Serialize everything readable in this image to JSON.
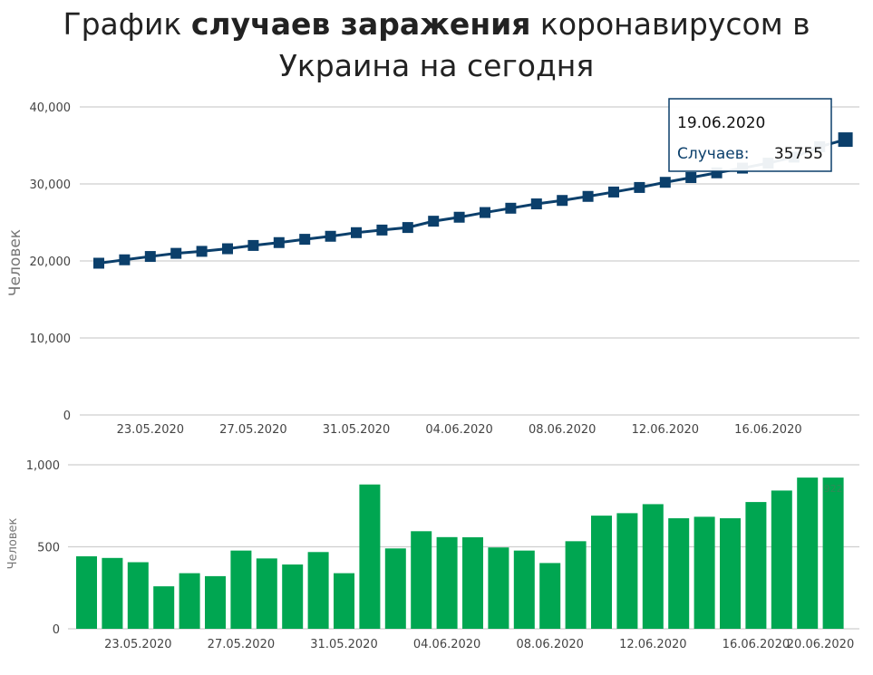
{
  "title": {
    "prefix": "График ",
    "bold": "случаев заражения",
    "suffix": " коронавирусом в Украина на сегодня"
  },
  "tooltip": {
    "date": "19.06.2020",
    "label": "Случаев:",
    "value": "35755"
  },
  "colors": {
    "line": "#0b3f6b",
    "bar": "#00a651",
    "grid": "#cfcfcf",
    "axis_text": "#444444"
  },
  "chart_data": [
    {
      "type": "line",
      "ylabel": "Человек",
      "ylim": [
        0,
        40000
      ],
      "yticks": [
        "0",
        "10,000",
        "20,000",
        "30,000",
        "40,000"
      ],
      "xticks": [
        "23.05.2020",
        "27.05.2020",
        "31.05.2020",
        "04.06.2020",
        "08.06.2020",
        "12.06.2020",
        "16.06.2020"
      ],
      "x": [
        "21.05.2020",
        "22.05.2020",
        "23.05.2020",
        "24.05.2020",
        "25.05.2020",
        "26.05.2020",
        "27.05.2020",
        "28.05.2020",
        "29.05.2020",
        "30.05.2020",
        "31.05.2020",
        "01.06.2020",
        "02.06.2020",
        "03.06.2020",
        "04.06.2020",
        "05.06.2020",
        "06.06.2020",
        "07.06.2020",
        "08.06.2020",
        "09.06.2020",
        "10.06.2020",
        "11.06.2020",
        "12.06.2020",
        "13.06.2020",
        "14.06.2020",
        "15.06.2020",
        "16.06.2020",
        "17.06.2020",
        "18.06.2020",
        "19.06.2020"
      ],
      "series": [
        {
          "values": [
            19706,
            20148,
            20580,
            20986,
            21245,
            21584,
            22011,
            22382,
            22811,
            23204,
            23672,
            24012,
            24340,
            25159,
            25677,
            26287,
            26846,
            27407,
            27856,
            28381,
            28950,
            29539,
            30209,
            30825,
            31441,
            32053,
            32703,
            33479,
            34829,
            35755
          ]
        }
      ],
      "grid": true
    },
    {
      "type": "bar",
      "ylabel": "Человек",
      "ylim": [
        0,
        1000
      ],
      "yticks": [
        "0",
        "500",
        "1,000"
      ],
      "xticks": [
        "23.05.2020",
        "27.05.2020",
        "31.05.2020",
        "04.06.2020",
        "08.06.2020",
        "12.06.2020",
        "16.06.2020",
        "20.06.2020"
      ],
      "x": [
        "21.05.2020",
        "22.05.2020",
        "23.05.2020",
        "24.05.2020",
        "25.05.2020",
        "26.05.2020",
        "27.05.2020",
        "28.05.2020",
        "29.05.2020",
        "30.05.2020",
        "31.05.2020",
        "01.06.2020",
        "02.06.2020",
        "03.06.2020",
        "04.06.2020",
        "05.06.2020",
        "06.06.2020",
        "07.06.2020",
        "08.06.2020",
        "09.06.2020",
        "10.06.2020",
        "11.06.2020",
        "12.06.2020",
        "13.06.2020",
        "14.06.2020",
        "15.06.2020",
        "16.06.2020",
        "17.06.2020",
        "18.06.2020",
        "19.06.2020"
      ],
      "series": [
        {
          "values": [
            442,
            432,
            406,
            259,
            339,
            321,
            477,
            429,
            392,
            468,
            339,
            880,
            490,
            595,
            559,
            558,
            496,
            477,
            401,
            534,
            690,
            705,
            760,
            674,
            683,
            674,
            773,
            843,
            922,
            922
          ]
        }
      ],
      "data_labels": {
        "last": "922"
      },
      "grid": true
    }
  ]
}
